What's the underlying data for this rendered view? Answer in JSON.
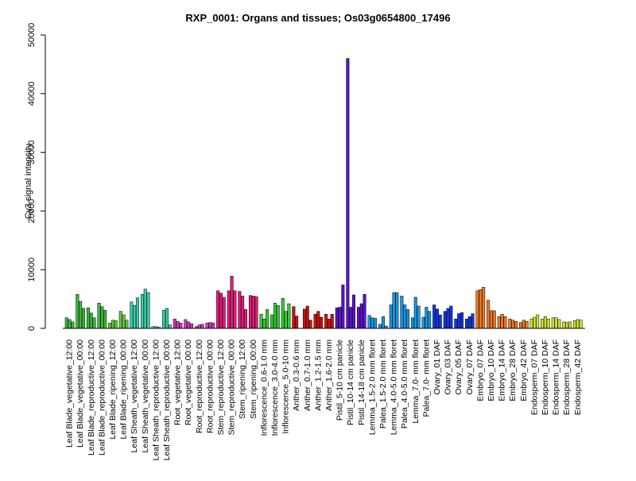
{
  "chart_data": {
    "type": "bar",
    "title": "RXP_0001: Organs and tissues; Os03g0654800_17496",
    "xlabel": "",
    "ylabel": "Cy3 signal intensity",
    "ylim": [
      0,
      50000
    ],
    "yticks": [
      0,
      10000,
      20000,
      30000,
      40000,
      50000
    ],
    "grid": false,
    "legend": "none",
    "categories": [
      "Leaf Blade_vegetative_12:00",
      "Leaf Blade_vegetative_00:00",
      "Leaf Blade_reproductive_12:00",
      "Leaf Blade_reproductive_00:00",
      "Leaf Blade_ripening_12:00",
      "Leaf Blade_ripening_00:00",
      "Leaf Sheath_vegetative_12:00",
      "Leaf Sheath_vegetative_00:00",
      "Leaf Sheath_reproductive_12:00",
      "Leaf Sheath_reproductive_00:00",
      "Root_vegetative_12:00",
      "Root_vegetative_00:00",
      "Root_reproductive_12:00",
      "Root_reproductive_00:00",
      "Stem_reproductive_12:00",
      "Stem_reproductive_00:00",
      "Stem_ripening_12:00",
      "Stem_ripening_00:00",
      "Inflorescence_0.6-1.0 mm",
      "Inflorescence_3.0-4.0 mm",
      "Inflorescence_5.0-10 mm",
      "Anther_0.3-0.6 mm",
      "Anther_0.7-1.0 mm",
      "Anther_1.2-1.5 mm",
      "Anther_1.6-2.0 mm",
      "Pistil_5-10 cm panicle",
      "Pistil_10-14 cm panicle",
      "Pistil_14-18 cm panicle",
      "Lemma_1.5-2.0 mm floret",
      "Palea_1.5-2.0 mm floret",
      "Lemma_4.0-5.0 mm floret",
      "Palea_4.0-5.0 mm floret",
      "Lemma_7.0- mm floret",
      "Palea_7.0- mm floret",
      "Ovary_01 DAF",
      "Ovary_03 DAF",
      "Ovary_05 DAF",
      "Ovary_07 DAF",
      "Embryo_07 DAF",
      "Embryo_10 DAF",
      "Embryo_14 DAF",
      "Embryo_28 DAF",
      "Embryo_42 DAF",
      "Endosperm_07 DAF",
      "Endosperm_10 DAF",
      "Endosperm_14 DAF",
      "Endosperm_28 DAF",
      "Endosperm_42 DAF"
    ],
    "groups": [
      {
        "color": "#3cb83c",
        "values": [
          1800,
          1500,
          1100
        ]
      },
      {
        "color": "#3cb83c",
        "values": [
          5800,
          4600,
          3400
        ]
      },
      {
        "color": "#3cb83c",
        "values": [
          3500,
          2600,
          1800
        ]
      },
      {
        "color": "#3cb83c",
        "values": [
          4300,
          3700,
          3100
        ]
      },
      {
        "color": "#5ccc3c",
        "values": [
          900,
          1400,
          1300
        ]
      },
      {
        "color": "#5ccc3c",
        "values": [
          2900,
          2300,
          1400
        ]
      },
      {
        "color": "#3cccaa",
        "values": [
          4500,
          3900,
          5200
        ]
      },
      {
        "color": "#3cccaa",
        "values": [
          5800,
          6700,
          6100
        ]
      },
      {
        "color": "#3cccaa",
        "values": [
          300,
          300,
          200
        ]
      },
      {
        "color": "#3cccaa",
        "values": [
          3100,
          3400,
          600
        ]
      },
      {
        "color": "#cc3cb4",
        "values": [
          1600,
          1200,
          900
        ]
      },
      {
        "color": "#cc3cb4",
        "values": [
          1500,
          1100,
          800
        ]
      },
      {
        "color": "#cc3cb4",
        "values": [
          300,
          600,
          700
        ]
      },
      {
        "color": "#cc3cb4",
        "values": [
          900,
          1000,
          900
        ]
      },
      {
        "color": "#e01c78",
        "values": [
          6400,
          6000,
          5300
        ]
      },
      {
        "color": "#e01c78",
        "values": [
          6400,
          8900,
          6400
        ]
      },
      {
        "color": "#e01c78",
        "values": [
          6300,
          5500,
          3200
        ]
      },
      {
        "color": "#e01c78",
        "values": [
          5600,
          5500,
          5400
        ]
      },
      {
        "color": "#33cc33",
        "values": [
          2400,
          1600,
          3200
        ]
      },
      {
        "color": "#33cc33",
        "values": [
          2300,
          4300,
          3900
        ]
      },
      {
        "color": "#33cc33",
        "values": [
          5100,
          2900,
          4200
        ]
      },
      {
        "color": "#cc1111",
        "values": [
          3700,
          2100,
          0
        ]
      },
      {
        "color": "#cc1111",
        "values": [
          3300,
          3800,
          1400
        ]
      },
      {
        "color": "#cc1111",
        "values": [
          2400,
          2900,
          1900
        ]
      },
      {
        "color": "#cc1111",
        "values": [
          2400,
          1600,
          2400
        ]
      },
      {
        "color": "#5a14c8",
        "values": [
          3500,
          3600,
          7400
        ]
      },
      {
        "color": "#5a14c8",
        "values": [
          46000,
          3600,
          5700
        ]
      },
      {
        "color": "#5a14c8",
        "values": [
          3600,
          4200,
          5800
        ]
      },
      {
        "color": "#1a96e0",
        "values": [
          2200,
          1800,
          1700
        ]
      },
      {
        "color": "#1a96e0",
        "values": [
          700,
          2000,
          400
        ]
      },
      {
        "color": "#1a96e0",
        "values": [
          4000,
          6100,
          6100
        ]
      },
      {
        "color": "#1a96e0",
        "values": [
          5500,
          4000,
          3200
        ]
      },
      {
        "color": "#1a96e0",
        "values": [
          1800,
          5300,
          3800
        ]
      },
      {
        "color": "#1a96e0",
        "values": [
          1900,
          3600,
          2900
        ]
      },
      {
        "color": "#1438d8",
        "values": [
          4000,
          3300,
          2300
        ]
      },
      {
        "color": "#1438d8",
        "values": [
          2900,
          3400,
          3800
        ]
      },
      {
        "color": "#1438d8",
        "values": [
          1600,
          2500,
          2700
        ]
      },
      {
        "color": "#1438d8",
        "values": [
          1600,
          2000,
          2500
        ]
      },
      {
        "color": "#ee7722",
        "values": [
          6400,
          6600,
          7000
        ]
      },
      {
        "color": "#ee7722",
        "values": [
          4800,
          3000,
          3000
        ]
      },
      {
        "color": "#ee7722",
        "values": [
          2000,
          2400,
          2000
        ]
      },
      {
        "color": "#ee7722",
        "values": [
          1600,
          1400,
          1200
        ]
      },
      {
        "color": "#ee7722",
        "values": [
          1000,
          1400,
          1200
        ]
      },
      {
        "color": "#cce033",
        "values": [
          1600,
          1900,
          2300
        ]
      },
      {
        "color": "#cce033",
        "values": [
          1600,
          2000,
          1600
        ]
      },
      {
        "color": "#cce033",
        "values": [
          1800,
          1800,
          1500
        ]
      },
      {
        "color": "#cce033",
        "values": [
          1100,
          1000,
          1100
        ]
      },
      {
        "color": "#cce033",
        "values": [
          1300,
          1500,
          1400
        ]
      }
    ]
  }
}
